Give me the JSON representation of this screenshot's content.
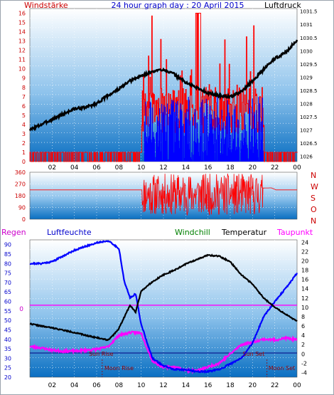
{
  "colors": {
    "bg_top": "#ffffff",
    "bg_bottom": "#0a73c4",
    "wind_speed": "#ff0000",
    "wind_gust": "#0000ff",
    "pressure": "#000000",
    "direction": "#ff0000",
    "humidity": "#0000ff",
    "windchill": "#000000",
    "temperature": "#000000",
    "dewpoint": "#ff00ff",
    "rain_marker": "#ff00ff",
    "sun_line": "#000080",
    "sun_text": "#990000",
    "label_red": "#cc0000",
    "label_green": "#008000",
    "label_blue": "#0000cc"
  },
  "header": {
    "left_label": "Windstärke",
    "title": "24 hour graph day : 20 April 2015",
    "right_label": "Luftdruck"
  },
  "panel3_labels": {
    "regen": "Regen",
    "luftfeuchte": "Luftfeuchte",
    "windchill": "Windchill",
    "temperatur": "Temperatur",
    "taupunkt": "Taupunkt"
  },
  "direction_labels": [
    "N",
    "W",
    "S",
    "O",
    "N"
  ],
  "annotations": {
    "sun_rise": "Sun Rise",
    "moon_rise": "Moon Rise",
    "sun_set": "Sun Set",
    "moon_set": "Moon Set",
    "rain_zero": "0"
  },
  "chart_data": [
    {
      "type": "line",
      "name": "wind_and_pressure",
      "x_ticks": [
        "02",
        "04",
        "06",
        "08",
        "10",
        "12",
        "14",
        "16",
        "18",
        "20",
        "22",
        "00"
      ],
      "x_range": [
        0,
        24
      ],
      "y_left_ticks": [
        "0",
        "1",
        "2",
        "3",
        "4",
        "5",
        "6",
        "7",
        "8",
        "9",
        "10",
        "11",
        "12",
        "13",
        "14",
        "15",
        "16"
      ],
      "y_left_range": [
        0,
        16.5
      ],
      "y_right_ticks": [
        "1026",
        "1026.5",
        "1027",
        "1027.5",
        "1028",
        "1028.5",
        "1029",
        "1029.5",
        "1030",
        "1030.5",
        "1031",
        "1031.5"
      ],
      "y_right_range": [
        1025.8,
        1031.6
      ],
      "pressure": {
        "x": [
          0,
          1,
          2,
          3,
          4,
          5,
          6,
          7,
          8,
          9,
          10,
          11,
          12,
          13,
          14,
          15,
          16,
          17,
          18,
          19,
          20,
          21,
          22,
          23,
          24
        ],
        "y": [
          1027.0,
          1027.2,
          1027.4,
          1027.6,
          1027.8,
          1027.85,
          1028.0,
          1028.3,
          1028.55,
          1028.85,
          1029.05,
          1029.2,
          1029.3,
          1029.1,
          1028.8,
          1028.6,
          1028.4,
          1028.3,
          1028.25,
          1028.45,
          1028.85,
          1029.3,
          1029.7,
          1029.95,
          1030.4
        ]
      },
      "wind_speed_note": "values 0-16, active mostly between 10 and 21",
      "gust_note": "values 0-7, 10 to 21"
    },
    {
      "type": "line",
      "name": "wind_direction",
      "x_ticks": [
        "02",
        "04",
        "06",
        "08",
        "10",
        "12",
        "14",
        "16",
        "18",
        "20",
        "22",
        "00"
      ],
      "y_ticks": [
        "360",
        "270",
        "180",
        "90",
        "0"
      ],
      "y_range": [
        0,
        360
      ],
      "baseline": {
        "x": [
          0,
          10.1,
          21.7,
          22.1,
          24
        ],
        "y": [
          225,
          225,
          240,
          225,
          225
        ]
      }
    },
    {
      "type": "line",
      "name": "humidity_temperature",
      "x_ticks": [
        "02",
        "04",
        "06",
        "08",
        "10",
        "12",
        "14",
        "16",
        "18",
        "20",
        "22",
        "00"
      ],
      "y_left_ticks": [
        "20",
        "25",
        "30",
        "35",
        "40",
        "45",
        "50",
        "55",
        "60",
        "65",
        "70",
        "75",
        "80",
        "85",
        "90"
      ],
      "y_left_range": [
        20,
        92.5
      ],
      "y_right_ticks": [
        "-4",
        "-2",
        "0",
        "2",
        "4",
        "6",
        "8",
        "10",
        "12",
        "14",
        "16",
        "18",
        "20",
        "22",
        "24"
      ],
      "y_right_range": [
        -5,
        24.5
      ],
      "humidity": {
        "x": [
          0,
          1,
          2,
          3,
          4,
          5,
          6,
          7,
          8,
          8.5,
          9,
          9.5,
          10,
          11,
          12,
          13,
          14,
          15,
          16,
          17,
          18,
          19,
          20,
          21,
          22,
          23,
          24
        ],
        "y": [
          80,
          80,
          81,
          84,
          87,
          89,
          91,
          92,
          88,
          70,
          62,
          64,
          48,
          30,
          26,
          24,
          24,
          23,
          23,
          24,
          27,
          30,
          38,
          52,
          60,
          67,
          75
        ]
      },
      "temperature": {
        "x": [
          0,
          1,
          2,
          3,
          4,
          5,
          6,
          7,
          7.5,
          8,
          8.5,
          9,
          9.5,
          10,
          11,
          12,
          13,
          14,
          15,
          16,
          17,
          18,
          19,
          20,
          21,
          22,
          23,
          24
        ],
        "y": [
          6.5,
          6,
          5.6,
          5.1,
          4.6,
          4.0,
          3.5,
          3.0,
          4.0,
          5.5,
          8.0,
          10.5,
          9.0,
          13.5,
          15.5,
          17.0,
          18.0,
          19.3,
          20.3,
          21.2,
          21.0,
          19.8,
          17.0,
          15.0,
          12.0,
          10.0,
          8.5,
          7.0
        ]
      },
      "dewpoint": {
        "x": [
          0,
          1,
          2,
          3,
          4,
          5,
          6,
          7,
          8,
          9,
          10,
          11,
          12,
          13,
          14,
          15,
          16,
          17,
          18,
          19,
          20,
          21,
          22,
          23,
          24
        ],
        "y": [
          1.6,
          1.3,
          0.8,
          0.6,
          0.6,
          0.8,
          1.0,
          1.5,
          4.0,
          4.6,
          4.5,
          -1.5,
          -2.8,
          -2.8,
          -3.5,
          -3.6,
          -2.8,
          -2.0,
          0.0,
          2.0,
          2.5,
          3.2,
          3.0,
          3.4,
          3.0
        ]
      },
      "rain": {
        "value": 0
      },
      "sun_rise_h": 6.4,
      "sun_set_h": 20.1,
      "moon_rise_h": 6.5,
      "moon_set_h": 21.3
    }
  ]
}
